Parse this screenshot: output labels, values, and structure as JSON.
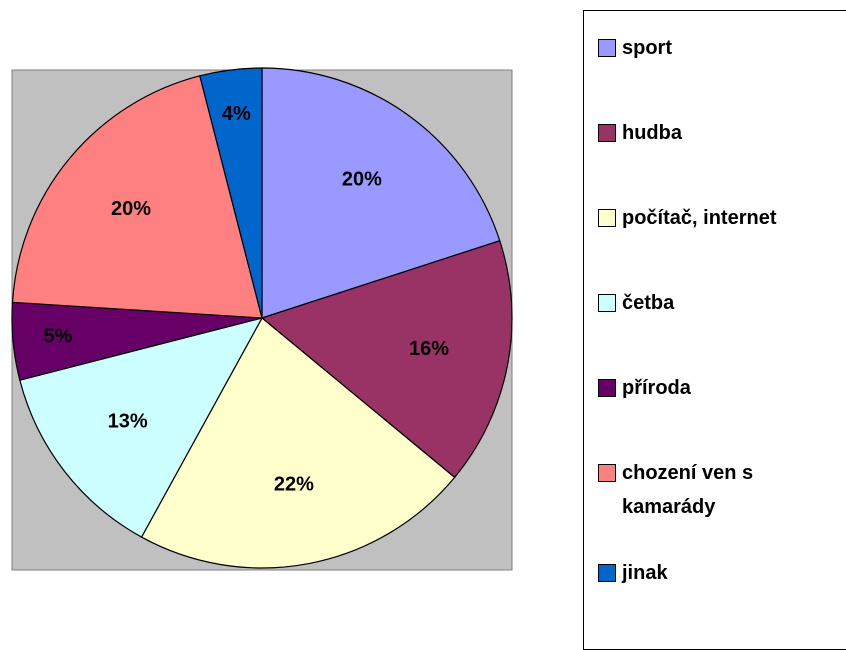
{
  "chart_data": {
    "type": "pie",
    "categories": [
      "sport",
      "hudba",
      "počítač, internet",
      "četba",
      "příroda",
      "chození ven s kamarády",
      "jinak"
    ],
    "values": [
      20,
      16,
      22,
      13,
      5,
      20,
      4
    ],
    "value_labels": [
      "20%",
      "16%",
      "22%",
      "13%",
      "5%",
      "20%",
      "4%"
    ],
    "colors": [
      "#9999ff",
      "#993366",
      "#ffffcc",
      "#ccffff",
      "#660066",
      "#ff8080",
      "#0066cc"
    ],
    "legend": "right"
  }
}
